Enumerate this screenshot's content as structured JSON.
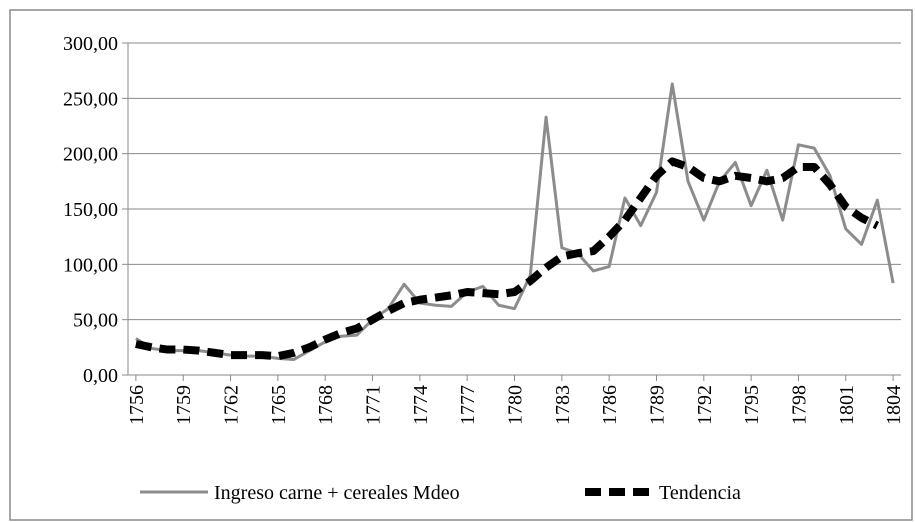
{
  "chart_data": {
    "type": "line",
    "x": [
      1756,
      1757,
      1758,
      1759,
      1760,
      1761,
      1762,
      1763,
      1764,
      1765,
      1766,
      1767,
      1768,
      1769,
      1770,
      1771,
      1772,
      1773,
      1774,
      1775,
      1776,
      1777,
      1778,
      1779,
      1780,
      1781,
      1782,
      1783,
      1784,
      1785,
      1786,
      1787,
      1788,
      1789,
      1790,
      1791,
      1792,
      1793,
      1794,
      1795,
      1796,
      1797,
      1798,
      1799,
      1800,
      1801,
      1802,
      1803,
      1804
    ],
    "series": [
      {
        "name": "Ingreso carne + cereales Mdeo",
        "color": "#8c8c8c",
        "dashed": false,
        "values": [
          33,
          24,
          22,
          22,
          22,
          20,
          18,
          17,
          17,
          15,
          14,
          22,
          30,
          35,
          36,
          50,
          60,
          82,
          65,
          63,
          62,
          75,
          80,
          63,
          60,
          90,
          233,
          115,
          110,
          94,
          98,
          160,
          135,
          165,
          263,
          175,
          140,
          175,
          192,
          153,
          185,
          140,
          208,
          205,
          180,
          132,
          118,
          158,
          83
        ]
      },
      {
        "name": "Tendencia",
        "color": "#000000",
        "dashed": true,
        "values": [
          28,
          25,
          23,
          23,
          22,
          20,
          18,
          18,
          18,
          17,
          20,
          25,
          32,
          38,
          42,
          50,
          58,
          65,
          68,
          70,
          72,
          75,
          74,
          73,
          75,
          85,
          97,
          107,
          110,
          112,
          125,
          140,
          160,
          180,
          193,
          188,
          178,
          175,
          180,
          178,
          175,
          178,
          188,
          188,
          172,
          152,
          142,
          135,
          null
        ]
      }
    ],
    "xlim": [
      1755.5,
      1804.5
    ],
    "xticks": [
      1756,
      1759,
      1762,
      1765,
      1768,
      1771,
      1774,
      1777,
      1780,
      1783,
      1786,
      1789,
      1792,
      1795,
      1798,
      1801,
      1804
    ],
    "ylim": [
      0,
      300
    ],
    "yticks": [
      {
        "value": 0,
        "label": "0,00"
      },
      {
        "value": 50,
        "label": "50,00"
      },
      {
        "value": 100,
        "label": "100,00"
      },
      {
        "value": 150,
        "label": "150,00"
      },
      {
        "value": 200,
        "label": "200,00"
      },
      {
        "value": 250,
        "label": "250,00"
      },
      {
        "value": 300,
        "label": "300,00"
      }
    ],
    "grid": true,
    "legend": "bottom"
  }
}
